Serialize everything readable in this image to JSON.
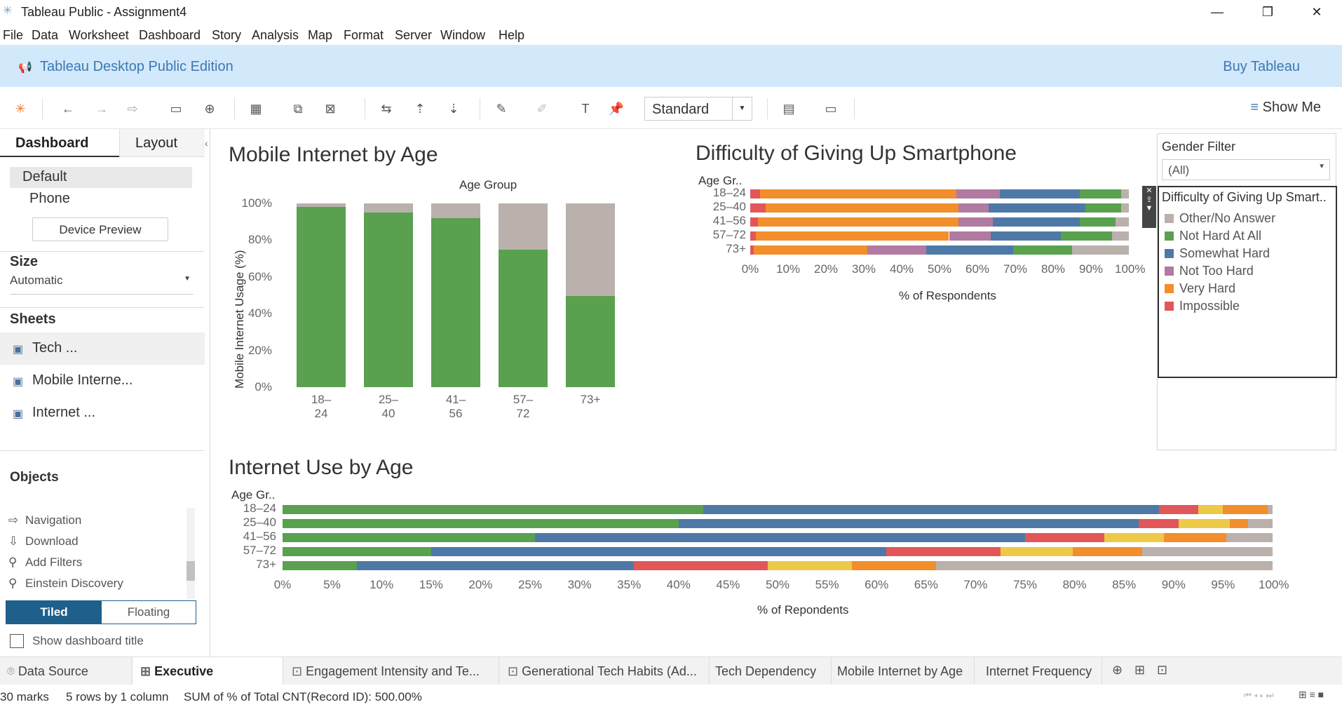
{
  "window": {
    "title": "Tableau Public - Assignment4",
    "minimize": "—",
    "restore": "❐",
    "close": "✕"
  },
  "menu": [
    "File",
    "Data",
    "Worksheet",
    "Dashboard",
    "Story",
    "Analysis",
    "Map",
    "Format",
    "Server",
    "Window",
    "Help"
  ],
  "banner": {
    "text": "Tableau Desktop Public Edition",
    "buy": "Buy Tableau"
  },
  "toolbar": {
    "fit": "Standard",
    "show_me": "Show Me"
  },
  "left_pane": {
    "tabs": [
      "Dashboard",
      "Layout"
    ],
    "devices": [
      "Default",
      "Phone"
    ],
    "device_preview": "Device Preview",
    "size_title": "Size",
    "size_value": "Automatic",
    "sheets_title": "Sheets",
    "sheets": [
      "Tech ...",
      "Mobile Interne...",
      "Internet ..."
    ],
    "objects_title": "Objects",
    "objects": [
      "Navigation",
      "Download",
      "Add Filters",
      "Einstein Discovery"
    ],
    "tiled": "Tiled",
    "floating": "Floating",
    "show_title": "Show dashboard title"
  },
  "legend": {
    "filter_title": "Gender Filter",
    "filter_value": "(All)",
    "title": "Difficulty of Giving Up Smart..",
    "items": [
      {
        "label": "Other/No Answer",
        "color": "#bab0ac"
      },
      {
        "label": "Not Hard At All",
        "color": "#59a14f"
      },
      {
        "label": "Somewhat Hard",
        "color": "#4e79a7"
      },
      {
        "label": "Not Too Hard",
        "color": "#b07aa1"
      },
      {
        "label": "Very Hard",
        "color": "#f28e2b"
      },
      {
        "label": "Impossible",
        "color": "#e15759"
      }
    ]
  },
  "chart_data": [
    {
      "type": "bar",
      "title": "Mobile Internet by Age",
      "header": "Age Group",
      "ylabel": "Mobile Internet Usage (%)",
      "categories": [
        "18–24",
        "25–40",
        "41–56",
        "57–72",
        "73+"
      ],
      "yticks": [
        "100%",
        "80%",
        "60%",
        "40%",
        "20%",
        "0%"
      ],
      "ylim": [
        0,
        100
      ],
      "series": [
        {
          "color": "#59a14f",
          "values": [
            98,
            95,
            92,
            75,
            49.5
          ]
        },
        {
          "color": "#ff9d9a",
          "values": [
            0,
            0,
            0,
            0,
            0.5
          ]
        },
        {
          "color": "#bab0ac",
          "values": [
            2,
            5,
            8,
            25,
            50
          ]
        }
      ]
    },
    {
      "type": "bar",
      "title": "Difficulty of Giving Up Smartphone",
      "header": "Age Gr..",
      "xlabel": "% of Respondents",
      "categories": [
        "18–24",
        "25–40",
        "41–56",
        "57–72",
        "73+"
      ],
      "xticks": [
        "0%",
        "10%",
        "20%",
        "30%",
        "40%",
        "50%",
        "60%",
        "70%",
        "80%",
        "90%",
        "100%"
      ],
      "xlim": [
        0,
        100
      ],
      "series": [
        {
          "name": "Impossible",
          "color": "#e15759",
          "values": [
            2.5,
            4,
            2,
            1.5,
            1
          ]
        },
        {
          "name": "Very Hard",
          "color": "#f28e2b",
          "values": [
            52,
            51,
            53,
            51,
            30
          ]
        },
        {
          "name": "Not Too Hard",
          "color": "#b07aa1",
          "values": [
            11.5,
            8,
            9,
            11,
            15.5
          ]
        },
        {
          "name": "Somewhat Hard",
          "color": "#4e79a7",
          "values": [
            21,
            25.5,
            23,
            18.5,
            23
          ]
        },
        {
          "name": "Not Hard At All",
          "color": "#59a14f",
          "values": [
            11,
            9.5,
            9.5,
            13.5,
            15.5
          ]
        },
        {
          "name": "Other/No Answer",
          "color": "#bab0ac",
          "values": [
            2,
            2,
            3.5,
            4.5,
            15
          ]
        }
      ]
    },
    {
      "type": "bar",
      "title": "Internet Use by Age",
      "header": "Age Gr..",
      "xlabel": "% of Repondents",
      "categories": [
        "18–24",
        "25–40",
        "41–56",
        "57–72",
        "73+"
      ],
      "xticks": [
        "0%",
        "5%",
        "10%",
        "15%",
        "20%",
        "25%",
        "30%",
        "35%",
        "40%",
        "45%",
        "50%",
        "55%",
        "60%",
        "65%",
        "70%",
        "75%",
        "80%",
        "85%",
        "90%",
        "95%",
        "100%"
      ],
      "xlim": [
        0,
        100
      ],
      "series": [
        {
          "color": "#59a14f",
          "values": [
            42.5,
            40,
            25.5,
            15,
            7.5
          ]
        },
        {
          "color": "#4e79a7",
          "values": [
            46,
            46.5,
            49.5,
            46,
            28
          ]
        },
        {
          "color": "#e15759",
          "values": [
            4,
            4,
            8,
            11.5,
            13.5
          ]
        },
        {
          "color": "#edc948",
          "values": [
            2.5,
            5.2,
            6,
            7.3,
            8.5
          ]
        },
        {
          "color": "#f28e2b",
          "values": [
            4.5,
            1.8,
            6.3,
            7,
            8.5
          ]
        },
        {
          "color": "#bab0ac",
          "values": [
            0.5,
            2.5,
            4.7,
            13.2,
            34
          ]
        }
      ]
    }
  ],
  "bottom_tabs": [
    "Data Source",
    "Executive Dashboard",
    "Engagement Intensity and Te...",
    "Generational Tech Habits (Ad...",
    "Tech Dependency",
    "Mobile Internet by Age",
    "Internet Frequency"
  ],
  "status": {
    "marks": "30 marks",
    "rows": "5 rows by 1 column",
    "sum": "SUM of % of Total CNT(Record ID): 500.00%"
  }
}
